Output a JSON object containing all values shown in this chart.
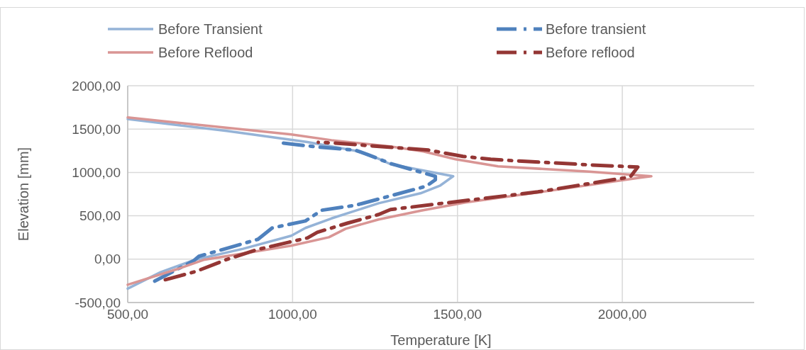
{
  "chart_data": {
    "type": "line",
    "xlabel": "Temperature [K]",
    "ylabel": "Elevation [mm]",
    "xlim": [
      500,
      2400
    ],
    "ylim": [
      -500,
      2000
    ],
    "xticks": [
      {
        "value": 500,
        "label": "500,00"
      },
      {
        "value": 1000,
        "label": "1000,00"
      },
      {
        "value": 1500,
        "label": "1500,00"
      },
      {
        "value": 2000,
        "label": "2000,00"
      }
    ],
    "yticks": [
      {
        "value": -500,
        "label": "-500,00"
      },
      {
        "value": 0,
        "label": "0,00"
      },
      {
        "value": 500,
        "label": "500,00"
      },
      {
        "value": 1000,
        "label": "1000,00"
      },
      {
        "value": 1500,
        "label": "1500,00"
      },
      {
        "value": 2000,
        "label": "2000,00"
      }
    ],
    "grid": true,
    "legend": "top",
    "marker": "none",
    "series": [
      {
        "name": "Before Transient",
        "color": "#95b3d7",
        "line_style": "solid",
        "x": [
          500,
          600,
          701,
          850,
          996,
          1039,
          1118,
          1261,
          1388,
          1448,
          1487,
          1297,
          1260,
          1190,
          1045,
          800,
          500
        ],
        "values": [
          -340,
          -150,
          -10,
          120,
          270,
          360,
          470,
          645,
          760,
          850,
          956,
          1095,
          1160,
          1250,
          1350,
          1480,
          1615
        ]
      },
      {
        "name": "Before transient",
        "color": "#4f81bd",
        "line_style": "dashed",
        "x": [
          582,
          701,
          716,
          895,
          938,
          1039,
          1088,
          1190,
          1405,
          1433,
          1433,
          1297,
          1226,
          1190,
          1082,
          968
        ],
        "values": [
          -253,
          -16,
          33,
          229,
          360,
          441,
          564,
          621,
          841,
          915,
          956,
          1103,
          1209,
          1258,
          1291,
          1340
        ]
      },
      {
        "name": "Before Reflood",
        "color": "#d99594",
        "line_style": "solid",
        "x": [
          500,
          651,
          730,
          996,
          1110,
          1161,
          1261,
          1390,
          1524,
          1800,
          2054,
          2088,
          1900,
          1623,
          1494,
          1397,
          1297,
          1118,
          996,
          500
        ],
        "values": [
          -295,
          -114,
          -8,
          155,
          253,
          351,
          458,
          560,
          654,
          800,
          940,
          956,
          1010,
          1070,
          1152,
          1242,
          1299,
          1372,
          1438,
          1634
        ]
      },
      {
        "name": "Before reflood",
        "color": "#943634",
        "line_style": "dashed",
        "x": [
          614,
          709,
          797,
          888,
          989,
          1045,
          1075,
          1168,
          1261,
          1297,
          1744,
          2024,
          2047,
          1903,
          1707,
          1601,
          1517,
          1412,
          1321,
          1125,
          1078
        ],
        "values": [
          -237,
          -139,
          -8,
          106,
          196,
          245,
          310,
          417,
          515,
          572,
          776,
          948,
          1062,
          1087,
          1127,
          1152,
          1185,
          1258,
          1283,
          1340,
          1348
        ]
      }
    ]
  }
}
